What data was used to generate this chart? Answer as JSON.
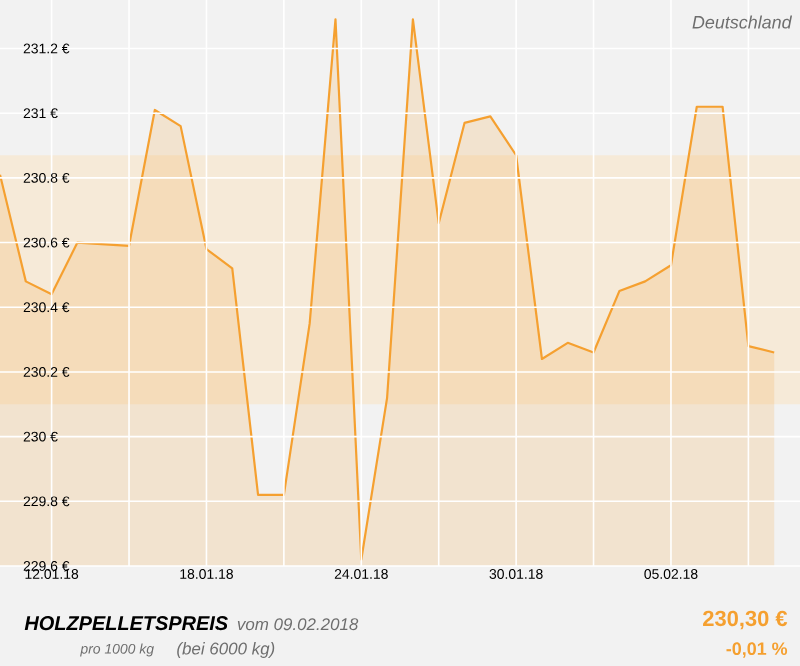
{
  "chart_data": {
    "type": "area",
    "title": "HOLZPELLETSPREIS",
    "subtitle": "vom 09.02.2018",
    "annotations": [
      "Deutschland",
      "pro 1000 kg",
      "(bei 6000 kg)",
      "230,30 €",
      "-0,01 %"
    ],
    "x": [
      "2018-01-10",
      "2018-01-11",
      "2018-01-12",
      "2018-01-13",
      "2018-01-15",
      "2018-01-16",
      "2018-01-17",
      "2018-01-18",
      "2018-01-19",
      "2018-01-20",
      "2018-01-21",
      "2018-01-22",
      "2018-01-23",
      "2018-01-24",
      "2018-01-25",
      "2018-01-26",
      "2018-01-27",
      "2018-01-28",
      "2018-01-29",
      "2018-01-30",
      "2018-01-31",
      "2018-02-01",
      "2018-02-02",
      "2018-02-03",
      "2018-02-04",
      "2018-02-05",
      "2018-02-06",
      "2018-02-07",
      "2018-02-08",
      "2018-02-09"
    ],
    "values": [
      230.81,
      230.48,
      230.44,
      230.6,
      230.59,
      231.01,
      230.96,
      230.58,
      230.52,
      229.82,
      229.82,
      230.35,
      231.29,
      229.62,
      230.12,
      231.29,
      230.66,
      230.97,
      230.99,
      230.87,
      230.24,
      230.29,
      230.26,
      230.45,
      230.48,
      230.53,
      231.02,
      231.02,
      230.28,
      230.26
    ],
    "color": "#f5a030",
    "xlim": [
      "2018-01-10",
      "2018-02-10"
    ],
    "xticks": [
      {
        "value": "2018-01-12",
        "label": "12.01.18"
      },
      {
        "value": "2018-01-15",
        "label": null
      },
      {
        "value": "2018-01-18",
        "label": "18.01.18"
      },
      {
        "value": "2018-01-21",
        "label": null
      },
      {
        "value": "2018-01-24",
        "label": "24.01.18"
      },
      {
        "value": "2018-01-27",
        "label": null
      },
      {
        "value": "2018-01-30",
        "label": "30.01.18"
      },
      {
        "value": "2018-02-02",
        "label": null
      },
      {
        "value": "2018-02-05",
        "label": "05.02.18"
      },
      {
        "value": "2018-02-08",
        "label": null
      }
    ],
    "ylim": [
      229.6,
      231.35
    ],
    "yticks": [
      {
        "value": 229.6,
        "label": "229.6 €"
      },
      {
        "value": 229.8,
        "label": "229.8 €"
      },
      {
        "value": 230,
        "label": "230 €"
      },
      {
        "value": 230.2,
        "label": "230.2 €"
      },
      {
        "value": 230.4,
        "label": "230.4 €"
      },
      {
        "value": 230.6,
        "label": "230.6 €"
      },
      {
        "value": 230.8,
        "label": "230.8 €"
      },
      {
        "value": 231,
        "label": "231 €"
      },
      {
        "value": 231.2,
        "label": "231.2 €"
      }
    ],
    "grid": true,
    "bands": [
      {
        "axis": "y",
        "from": 230.1,
        "to": 230.87,
        "color": "#f6ead8"
      }
    ]
  }
}
